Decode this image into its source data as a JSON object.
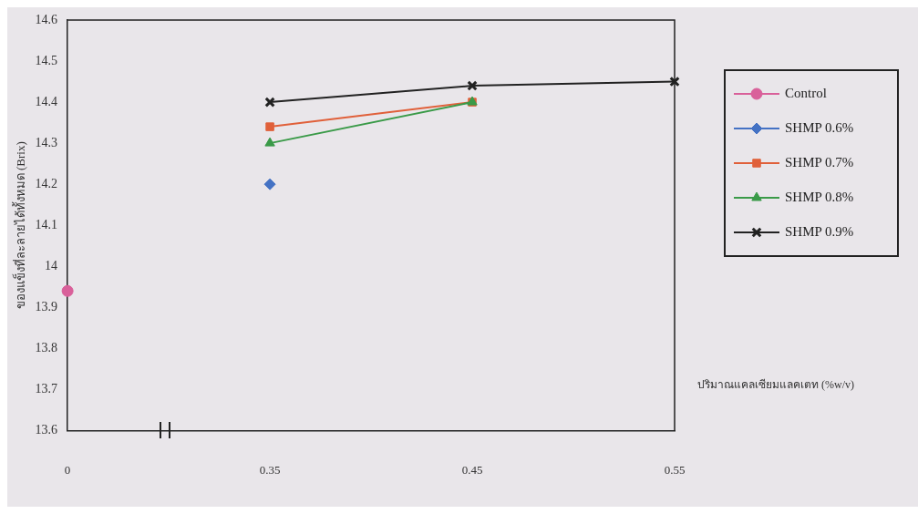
{
  "chart_data": {
    "type": "line",
    "xlabel": "ปริมาณแคลเซียมแลคเตท (%w/v)",
    "ylabel": "ของแข็งที่ละลายได้ทั้งหมด (Brix)",
    "categories": [
      "0",
      "0.35",
      "0.45",
      "0.55"
    ],
    "series": [
      {
        "name": "Control",
        "color": "#d9609a",
        "marker": "circle",
        "values": [
          13.94,
          null,
          null,
          null
        ]
      },
      {
        "name": "SHMP 0.6%",
        "color": "#4472c4",
        "marker": "diamond",
        "values": [
          null,
          14.2,
          null,
          null
        ]
      },
      {
        "name": "SHMP 0.7%",
        "color": "#e0603a",
        "marker": "square",
        "values": [
          null,
          14.34,
          14.4,
          null
        ]
      },
      {
        "name": "SHMP 0.8%",
        "color": "#3a9a48",
        "marker": "triangle",
        "values": [
          null,
          14.3,
          14.4,
          null
        ]
      },
      {
        "name": "SHMP 0.9%",
        "color": "#222222",
        "marker": "cross",
        "values": [
          null,
          14.4,
          14.44,
          14.45
        ]
      }
    ],
    "ylim": [
      13.6,
      14.6
    ],
    "yticks": [
      13.6,
      13.7,
      13.8,
      13.9,
      14,
      14.1,
      14.2,
      14.3,
      14.4,
      14.5,
      14.6
    ],
    "grid": false,
    "legend": "right"
  }
}
